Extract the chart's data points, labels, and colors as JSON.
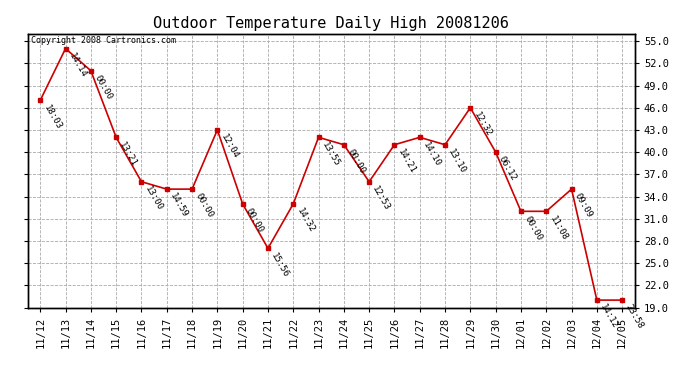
{
  "title": "Outdoor Temperature Daily High 20081206",
  "copyright": "Copyright 2008 Cartronics.com",
  "background_color": "#ffffff",
  "line_color": "#cc0000",
  "grid_color": "#aaaaaa",
  "x_labels": [
    "11/12",
    "11/13",
    "11/14",
    "11/15",
    "11/16",
    "11/17",
    "11/18",
    "11/19",
    "11/20",
    "11/21",
    "11/22",
    "11/23",
    "11/24",
    "11/25",
    "11/26",
    "11/27",
    "11/28",
    "11/29",
    "11/30",
    "12/01",
    "12/02",
    "12/03",
    "12/04",
    "12/05"
  ],
  "y_values": [
    47.0,
    54.0,
    51.0,
    42.0,
    36.0,
    35.0,
    35.0,
    43.0,
    33.0,
    27.0,
    33.0,
    42.0,
    41.0,
    36.0,
    41.0,
    42.0,
    41.0,
    46.0,
    40.0,
    32.0,
    32.0,
    35.0,
    20.0,
    20.0
  ],
  "point_labels": [
    "18:03",
    "14:14",
    "00:00",
    "13:21",
    "13:00",
    "14:59",
    "00:00",
    "12:04",
    "00:00",
    "15:56",
    "14:32",
    "13:55",
    "00:00",
    "12:53",
    "14:21",
    "14:10",
    "13:10",
    "12:32",
    "06:12",
    "00:00",
    "11:08",
    "09:09",
    "14:12",
    "23:58"
  ],
  "ylim_min": 19.0,
  "ylim_max": 56.0,
  "yticks": [
    19.0,
    22.0,
    25.0,
    28.0,
    31.0,
    34.0,
    37.0,
    40.0,
    43.0,
    46.0,
    49.0,
    52.0,
    55.0
  ],
  "title_fontsize": 11,
  "label_fontsize": 6.5,
  "tick_fontsize": 7.5
}
